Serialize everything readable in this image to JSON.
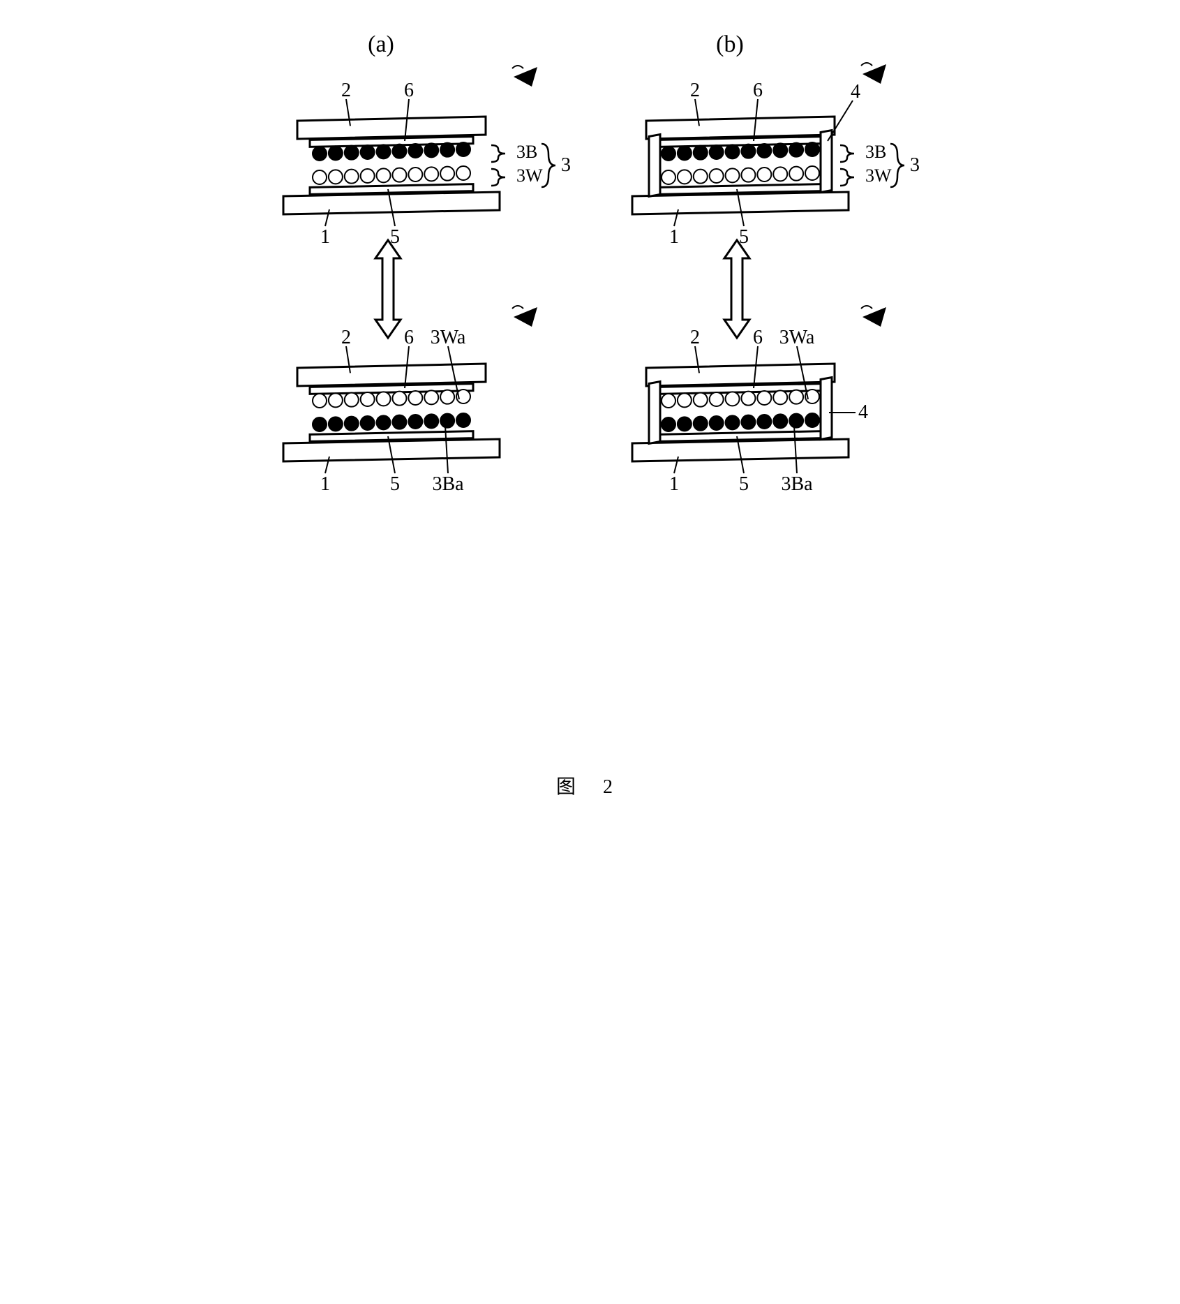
{
  "title": "图  2",
  "figure_width": 1000,
  "figure_height": 1040,
  "panels": [
    "a",
    "b"
  ],
  "col": {
    "a_label": "(a)",
    "b_label": "(b)"
  },
  "labels": {
    "a_top": {
      "n1": "1",
      "n2": "2",
      "n5": "5",
      "n6": "6",
      "n3": "3",
      "n3B": "3B",
      "n3W": "3W"
    },
    "a_bot": {
      "n1": "1",
      "n2": "2",
      "n5": "5",
      "n6": "6",
      "n3Wa": "3Wa",
      "n3Ba": "3Ba"
    },
    "b_top": {
      "n1": "1",
      "n2": "2",
      "n4": "4",
      "n5": "5",
      "n6": "6",
      "n3": "3",
      "n3B": "3B",
      "n3W": "3W"
    },
    "b_bot": {
      "n1": "1",
      "n2": "2",
      "n4": "4",
      "n5": "5",
      "n6": "6",
      "n3Wa": "3Wa",
      "n3Ba": "3Ba"
    }
  },
  "style": {
    "stroke": "#000000",
    "stroke_w": 3,
    "bg": "#ffffff",
    "black_particle": "#000000",
    "white_particle": "#ffffff",
    "font_family": "Times New Roman, serif",
    "label_font_size": 28,
    "panel_label_font_size": 34,
    "particle_r": 10,
    "particle_count": 10,
    "eye_fill": "#000000"
  },
  "geom": {
    "cell": {
      "plate_w": 270,
      "plate_h": 26,
      "plate_skew": 3,
      "electrode_w": 234,
      "electrode_h": 10,
      "gap": 58,
      "side_wall_w": 16
    }
  }
}
